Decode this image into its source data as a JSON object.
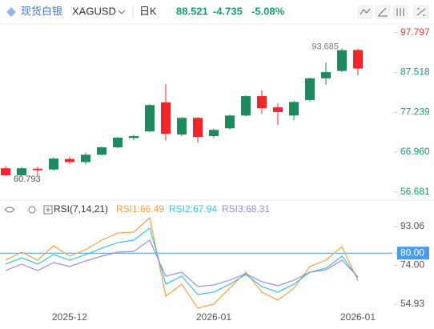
{
  "header": {
    "brand": "现货白银",
    "symbol": "XAGUSD",
    "period": "日K",
    "price": "88.521",
    "change": "-4.735",
    "change_pct": "-5.08%"
  },
  "chart_data": [
    {
      "type": "candlestick",
      "open": [
        62.8,
        61.0,
        62.7,
        62.5,
        65.2,
        64.4,
        66.3,
        68.2,
        70.6,
        72.3,
        79.8,
        71.5,
        75.8,
        71.1,
        73.1,
        76.4,
        81.4,
        78.5,
        76.4,
        80.4,
        86.0,
        87.9,
        93.3
      ],
      "high": [
        63.4,
        63.2,
        63.2,
        65.6,
        65.8,
        66.8,
        68.4,
        70.9,
        71.5,
        79.4,
        84.5,
        76.0,
        76.0,
        73.0,
        76.6,
        81.6,
        82.9,
        79.5,
        80.2,
        86.2,
        90.1,
        93.685,
        93.6
      ],
      "low": [
        60.793,
        60.9,
        60.9,
        62.2,
        63.9,
        63.9,
        66.1,
        68.0,
        70.0,
        72.1,
        70.0,
        71.1,
        69.4,
        70.6,
        72.8,
        76.2,
        76.9,
        74.0,
        75.2,
        80.0,
        84.3,
        87.6,
        86.8
      ],
      "close": [
        61.0,
        62.8,
        62.3,
        65.3,
        64.4,
        66.3,
        68.2,
        70.7,
        71.1,
        79.1,
        71.7,
        75.8,
        70.9,
        72.7,
        76.4,
        81.4,
        78.3,
        77.3,
        79.9,
        86.0,
        87.6,
        93.256,
        88.521
      ],
      "up_color": "#1e8a5e",
      "down_color": "#f0262c",
      "max_label": "93.685",
      "min_label": "60.793",
      "ylim": [
        55,
        100
      ],
      "yticks": [
        56.681,
        {
          "value": 66.96,
          "label": "66.960"
        },
        77.239,
        87.518,
        97.797
      ],
      "ytick_colors": [
        "#1a9b73",
        "#1a9b73",
        "#1a9b73",
        "#1a9b73",
        "#e83c3c"
      ]
    },
    {
      "type": "line",
      "title": "RSI(7,14,21)",
      "categories": [
        null,
        null,
        null,
        null,
        "2025-12",
        null,
        null,
        null,
        null,
        null,
        null,
        null,
        null,
        "2026-01",
        null,
        null,
        null,
        null,
        null,
        null,
        null,
        null,
        "2026-01"
      ],
      "series": [
        {
          "name": "RSI1:66.49",
          "color": "#f5a04a",
          "values": [
            76.55,
            80.48,
            76.55,
            83.63,
            78.52,
            81.66,
            86.38,
            89.92,
            90.31,
            97.38,
            58.86,
            64.76,
            52.97,
            54.93,
            62.79,
            70.65,
            60.83,
            56.9,
            62.79,
            73.41,
            76.55,
            83.23,
            66.49
          ]
        },
        {
          "name": "RSI2:67.94",
          "color": "#3cc3e0",
          "values": [
            74.59,
            77.73,
            74.59,
            79.3,
            76.55,
            79.3,
            82.45,
            85.2,
            86.38,
            92.27,
            64.76,
            68.69,
            59.65,
            60.83,
            64.76,
            69.48,
            63.58,
            60.83,
            64.76,
            70.65,
            72.62,
            78.52,
            67.94
          ]
        },
        {
          "name": "RSI3:68.31",
          "color": "#9a8de0",
          "values": [
            71.44,
            74.59,
            71.44,
            75.37,
            73.41,
            76.16,
            78.52,
            80.48,
            80.87,
            86.38,
            68.69,
            70.65,
            63.58,
            64.37,
            66.72,
            69.87,
            65.94,
            63.97,
            66.72,
            70.65,
            71.83,
            76.55,
            68.31
          ]
        }
      ],
      "hline": 80,
      "hline_color": "#4a9be8",
      "ylim": [
        49,
        98.2
      ],
      "yticks": [
        54.93,
        {
          "value": 74,
          "label": "74.00"
        },
        {
          "value": 80,
          "label": "80.00"
        },
        93.06
      ]
    }
  ]
}
